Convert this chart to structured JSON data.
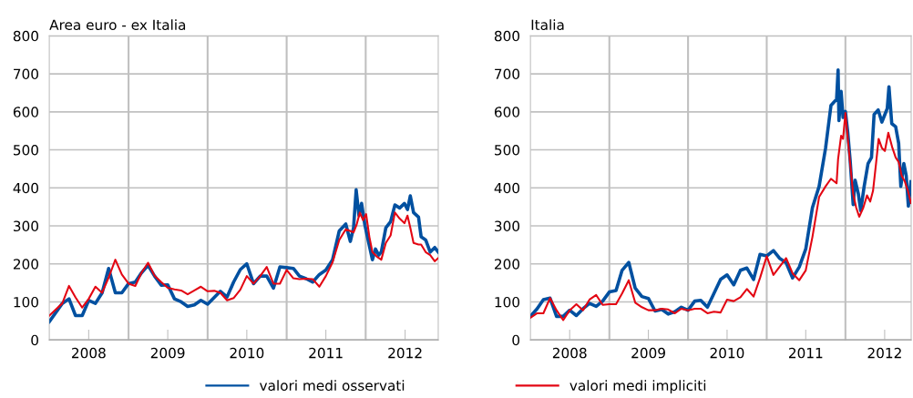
{
  "chart_data": [
    {
      "type": "line",
      "title": "Area euro - ex Italia",
      "xlim": [
        "2008-01-01",
        "2012-12-01"
      ],
      "ylim": [
        0,
        800
      ],
      "yticks": [
        0,
        100,
        200,
        300,
        400,
        500,
        600,
        700,
        800
      ],
      "xticks": [
        {
          "value": "2008-07-01",
          "label": "2008"
        },
        {
          "value": "2009-01-01",
          "label": null
        },
        {
          "value": "2009-07-01",
          "label": "2009"
        },
        {
          "value": "2010-01-01",
          "label": null
        },
        {
          "value": "2010-07-01",
          "label": "2010"
        },
        {
          "value": "2011-01-01",
          "label": null
        },
        {
          "value": "2011-07-01",
          "label": "2011"
        },
        {
          "value": "2012-01-01",
          "label": null
        },
        {
          "value": "2012-07-01",
          "label": "2012"
        }
      ],
      "grid": true,
      "legend": "bottom",
      "line_style": "solid",
      "marker": "none",
      "series": [
        {
          "name": "valori medi osservati",
          "color": "#0050a0",
          "x": [
            "2008-01",
            "2008-03",
            "2008-04",
            "2008-05",
            "2008-06",
            "2008-07",
            "2008-08",
            "2008-09",
            "2008-10",
            "2008-11",
            "2008-12",
            "2009-01",
            "2009-02",
            "2009-03",
            "2009-04",
            "2009-05",
            "2009-06",
            "2009-07",
            "2009-08",
            "2009-09",
            "2009-10",
            "2009-11",
            "2009-12",
            "2010-01",
            "2010-03",
            "2010-04",
            "2010-05",
            "2010-06",
            "2010-07",
            "2010-08",
            "2010-09",
            "2010-10",
            "2010-11",
            "2010-12",
            "2011-01",
            "2011-02",
            "2011-03",
            "2011-04",
            "2011-05",
            "2011-06",
            "2011-07",
            "2011-08",
            "2011-09",
            "2011-10",
            "2011-10-22",
            "2011-11-06",
            "2011-11-18",
            "2011-12-01",
            "2011-12-13",
            "2011-12-28",
            "2012-01-12",
            "2012-02-01",
            "2012-02-15",
            "2012-03-01",
            "2012-03-13",
            "2012-04-03",
            "2012-04-25",
            "2012-05-15",
            "2012-06-06",
            "2012-06-28",
            "2012-07-12",
            "2012-07-25",
            "2012-08-09",
            "2012-09-01",
            "2012-09-13",
            "2012-10-04",
            "2012-10-25",
            "2012-11-15",
            "2012-12-01"
          ],
          "values": [
            48,
            96,
            108,
            64,
            64,
            104,
            96,
            124,
            188,
            124,
            124,
            148,
            152,
            176,
            196,
            168,
            144,
            145,
            108,
            100,
            88,
            92,
            104,
            94,
            128,
            113,
            152,
            185,
            200,
            148,
            168,
            168,
            136,
            192,
            190,
            188,
            168,
            161,
            152,
            172,
            184,
            211,
            287,
            305,
            259,
            295,
            395,
            327,
            359,
            303,
            263,
            211,
            239,
            223,
            231,
            295,
            311,
            355,
            347,
            359,
            343,
            379,
            335,
            323,
            271,
            263,
            231,
            243,
            231
          ]
        },
        {
          "name": "valori medi impliciti",
          "color": "#e30613",
          "x": [
            "2008-01",
            "2008-03",
            "2008-04",
            "2008-05",
            "2008-06",
            "2008-07",
            "2008-08",
            "2008-09",
            "2008-10",
            "2008-11",
            "2008-12",
            "2009-01",
            "2009-02",
            "2009-03",
            "2009-04",
            "2009-05",
            "2009-06",
            "2009-07",
            "2009-08",
            "2009-09",
            "2009-10",
            "2009-11",
            "2009-12",
            "2010-01",
            "2010-02",
            "2010-03",
            "2010-04",
            "2010-05",
            "2010-06",
            "2010-07",
            "2010-08",
            "2010-09",
            "2010-10",
            "2010-11",
            "2010-12",
            "2011-01",
            "2011-02",
            "2011-03",
            "2011-04",
            "2011-05",
            "2011-06",
            "2011-07",
            "2011-08",
            "2011-09",
            "2011-10",
            "2011-11-06",
            "2011-11-20",
            "2011-12-05",
            "2011-12-20",
            "2012-01-03",
            "2012-01-18",
            "2012-02-01",
            "2012-02-22",
            "2012-03-13",
            "2012-04-03",
            "2012-04-25",
            "2012-05-15",
            "2012-06-06",
            "2012-06-28",
            "2012-07-12",
            "2012-07-25",
            "2012-08-09",
            "2012-09-01",
            "2012-09-13",
            "2012-10-04",
            "2012-10-25",
            "2012-11-15",
            "2012-12-01"
          ],
          "values": [
            64,
            96,
            142,
            112,
            85,
            108,
            140,
            124,
            164,
            211,
            172,
            148,
            142,
            176,
            203,
            169,
            152,
            137,
            133,
            130,
            120,
            130,
            140,
            128,
            129,
            124,
            104,
            110,
            132,
            168,
            148,
            168,
            192,
            148,
            148,
            184,
            162,
            160,
            161,
            160,
            140,
            168,
            204,
            263,
            291,
            283,
            303,
            335,
            315,
            331,
            271,
            231,
            219,
            211,
            255,
            275,
            335,
            319,
            307,
            327,
            295,
            255,
            251,
            251,
            231,
            223,
            207,
            215
          ]
        }
      ]
    },
    {
      "type": "line",
      "title": "Italia",
      "xlim": [
        "2008-01-01",
        "2012-11-01"
      ],
      "ylim": [
        0,
        800
      ],
      "yticks": [
        0,
        100,
        200,
        300,
        400,
        500,
        600,
        700,
        800
      ],
      "xticks": [
        {
          "value": "2008-07-01",
          "label": "2008"
        },
        {
          "value": "2009-01-01",
          "label": null
        },
        {
          "value": "2009-07-01",
          "label": "2009"
        },
        {
          "value": "2010-01-01",
          "label": null
        },
        {
          "value": "2010-07-01",
          "label": "2010"
        },
        {
          "value": "2011-01-01",
          "label": null
        },
        {
          "value": "2011-07-01",
          "label": "2011"
        },
        {
          "value": "2012-01-01",
          "label": null
        },
        {
          "value": "2012-07-01",
          "label": "2012"
        }
      ],
      "grid": true,
      "legend": "bottom",
      "line_style": "solid",
      "marker": "none",
      "series": [
        {
          "name": "valori medi osservati",
          "color": "#0050a0",
          "x": [
            "2008-01",
            "2008-02",
            "2008-03",
            "2008-04",
            "2008-05",
            "2008-06",
            "2008-07",
            "2008-08",
            "2008-09",
            "2008-10",
            "2008-11",
            "2008-12",
            "2009-01",
            "2009-02",
            "2009-03",
            "2009-04",
            "2009-05",
            "2009-06",
            "2009-07",
            "2009-08",
            "2009-09",
            "2009-10",
            "2009-11",
            "2009-12",
            "2010-01",
            "2010-02",
            "2010-03",
            "2010-04",
            "2010-05",
            "2010-06",
            "2010-07",
            "2010-08",
            "2010-09",
            "2010-10",
            "2010-11",
            "2010-12",
            "2011-01",
            "2011-02",
            "2011-03",
            "2011-04",
            "2011-05",
            "2011-06",
            "2011-07",
            "2011-08",
            "2011-09",
            "2011-10",
            "2011-10-26",
            "2011-11-21",
            "2011-11-28",
            "2011-12-02",
            "2011-12-12",
            "2011-12-21",
            "2012-01-01",
            "2012-01-12",
            "2012-01-23",
            "2012-02-06",
            "2012-02-15",
            "2012-03-01",
            "2012-03-12",
            "2012-03-28",
            "2012-04-15",
            "2012-05-01",
            "2012-05-13",
            "2012-06-01",
            "2012-06-18",
            "2012-07-02",
            "2012-07-13",
            "2012-07-21",
            "2012-08-03",
            "2012-08-21",
            "2012-09-04",
            "2012-09-14",
            "2012-09-28",
            "2012-10-09",
            "2012-10-19",
            "2012-10-31"
          ],
          "values": [
            62,
            82,
            106,
            110,
            62,
            62,
            78,
            64,
            82,
            96,
            88,
            102,
            126,
            130,
            183,
            204,
            136,
            114,
            109,
            76,
            80,
            68,
            74,
            86,
            78,
            102,
            104,
            86,
            122,
            159,
            171,
            145,
            183,
            189,
            159,
            225,
            221,
            235,
            215,
            203,
            163,
            192,
            239,
            348,
            404,
            505,
            617,
            633,
            710,
            577,
            654,
            585,
            601,
            545,
            472,
            356,
            420,
            384,
            340,
            404,
            464,
            480,
            593,
            605,
            573,
            593,
            609,
            666,
            569,
            561,
            517,
            404,
            464,
            432,
            352,
            416
          ]
        },
        {
          "name": "valori medi impliciti",
          "color": "#e30613",
          "x": [
            "2008-01",
            "2008-02",
            "2008-03",
            "2008-04",
            "2008-05",
            "2008-06",
            "2008-07",
            "2008-08",
            "2008-09",
            "2008-10",
            "2008-11",
            "2008-12",
            "2009-01",
            "2009-02",
            "2009-03",
            "2009-04",
            "2009-05",
            "2009-06",
            "2009-07",
            "2009-08",
            "2009-09",
            "2009-10",
            "2009-11",
            "2009-12",
            "2010-01",
            "2010-02",
            "2010-03",
            "2010-04",
            "2010-05",
            "2010-06",
            "2010-07",
            "2010-08",
            "2010-09",
            "2010-10",
            "2010-11",
            "2010-12",
            "2011-01",
            "2011-02",
            "2011-03",
            "2011-04",
            "2011-05",
            "2011-06",
            "2011-07",
            "2011-08",
            "2011-09",
            "2011-10",
            "2011-10-26",
            "2011-11-21",
            "2011-11-28",
            "2011-12-12",
            "2011-12-21",
            "2012-01-01",
            "2012-01-12",
            "2012-01-23",
            "2012-02-06",
            "2012-02-20",
            "2012-03-05",
            "2012-03-24",
            "2012-04-10",
            "2012-04-25",
            "2012-05-08",
            "2012-05-22",
            "2012-06-03",
            "2012-06-18",
            "2012-07-02",
            "2012-07-18",
            "2012-08-06",
            "2012-08-21",
            "2012-09-04",
            "2012-09-18",
            "2012-10-03",
            "2012-10-17",
            "2012-10-31"
          ],
          "values": [
            58,
            70,
            70,
            110,
            78,
            52,
            78,
            94,
            78,
            106,
            118,
            92,
            94,
            94,
            122,
            157,
            98,
            86,
            78,
            78,
            82,
            80,
            70,
            82,
            78,
            82,
            82,
            70,
            74,
            72,
            106,
            102,
            112,
            134,
            114,
            163,
            220,
            171,
            192,
            215,
            175,
            157,
            183,
            271,
            376,
            404,
            424,
            412,
            476,
            537,
            529,
            597,
            529,
            464,
            384,
            348,
            324,
            348,
            380,
            364,
            392,
            464,
            529,
            505,
            497,
            545,
            505,
            480,
            468,
            432,
            416,
            392,
            360
          ]
        }
      ]
    }
  ]
}
